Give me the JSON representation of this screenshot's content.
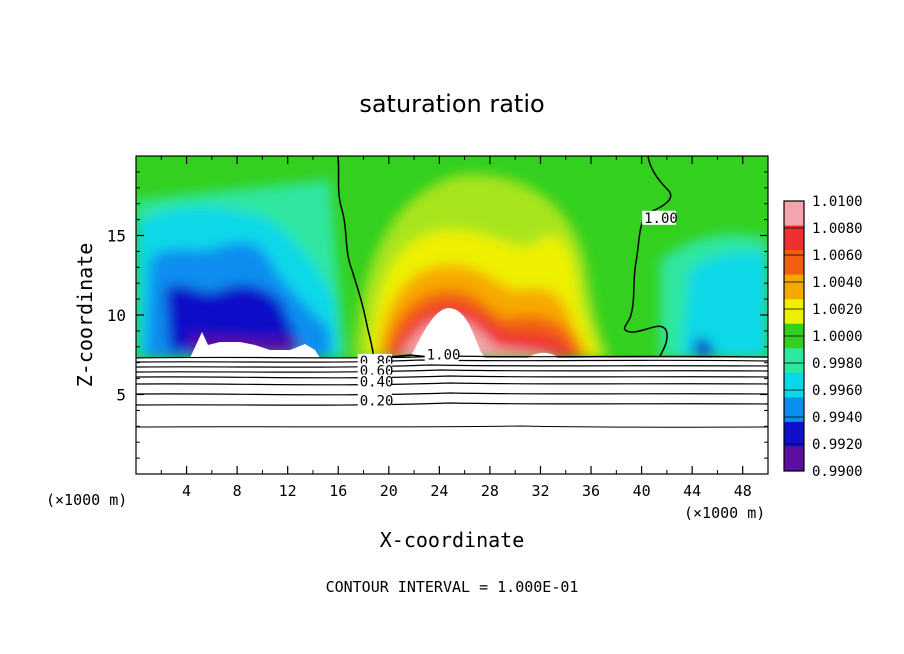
{
  "chart_data": {
    "type": "heatmap",
    "title": "saturation ratio",
    "xlabel": "X-coordinate",
    "ylabel": "Z-coordinate",
    "x_unit_left": "(×1000 m)",
    "x_unit_right": "(×1000 m)",
    "xlim": [
      0,
      50
    ],
    "ylim": [
      0,
      20
    ],
    "x_ticks": [
      "4",
      "8",
      "12",
      "16",
      "20",
      "24",
      "28",
      "32",
      "36",
      "40",
      "44",
      "48"
    ],
    "x_tick_values": [
      4,
      8,
      12,
      16,
      20,
      24,
      28,
      32,
      36,
      40,
      44,
      48
    ],
    "y_ticks": [
      "5",
      "10",
      "15"
    ],
    "y_tick_values": [
      5,
      10,
      15
    ],
    "colorbar": {
      "labels": [
        "1.0100",
        "1.0080",
        "1.0060",
        "1.0040",
        "1.0020",
        "1.0000",
        "0.9980",
        "0.9960",
        "0.9940",
        "0.9920",
        "0.9900"
      ],
      "values": [
        1.01,
        1.008,
        1.006,
        1.004,
        1.002,
        1.0,
        0.998,
        0.996,
        0.994,
        0.992,
        0.99
      ],
      "colors": [
        "#f4a4ac",
        "#ee3030",
        "#f16010",
        "#f7a800",
        "#eef000",
        "#33d020",
        "#2ee6a0",
        "#08d8e8",
        "#0a8ef0",
        "#1010c8",
        "#5a0fa0"
      ]
    },
    "contour_labels": [
      {
        "text": "1.00",
        "x": 40.2,
        "y": 15.8
      },
      {
        "text": "1.00",
        "x": 23.0,
        "y": 7.2
      },
      {
        "text": "0.80",
        "x": 17.7,
        "y": 6.8
      },
      {
        "text": "0.60",
        "x": 17.7,
        "y": 6.2
      },
      {
        "text": "0.40",
        "x": 17.7,
        "y": 5.5
      },
      {
        "text": "0.20",
        "x": 17.7,
        "y": 4.3
      }
    ],
    "footer": "CONTOUR INTERVAL = 1.000E-01"
  }
}
